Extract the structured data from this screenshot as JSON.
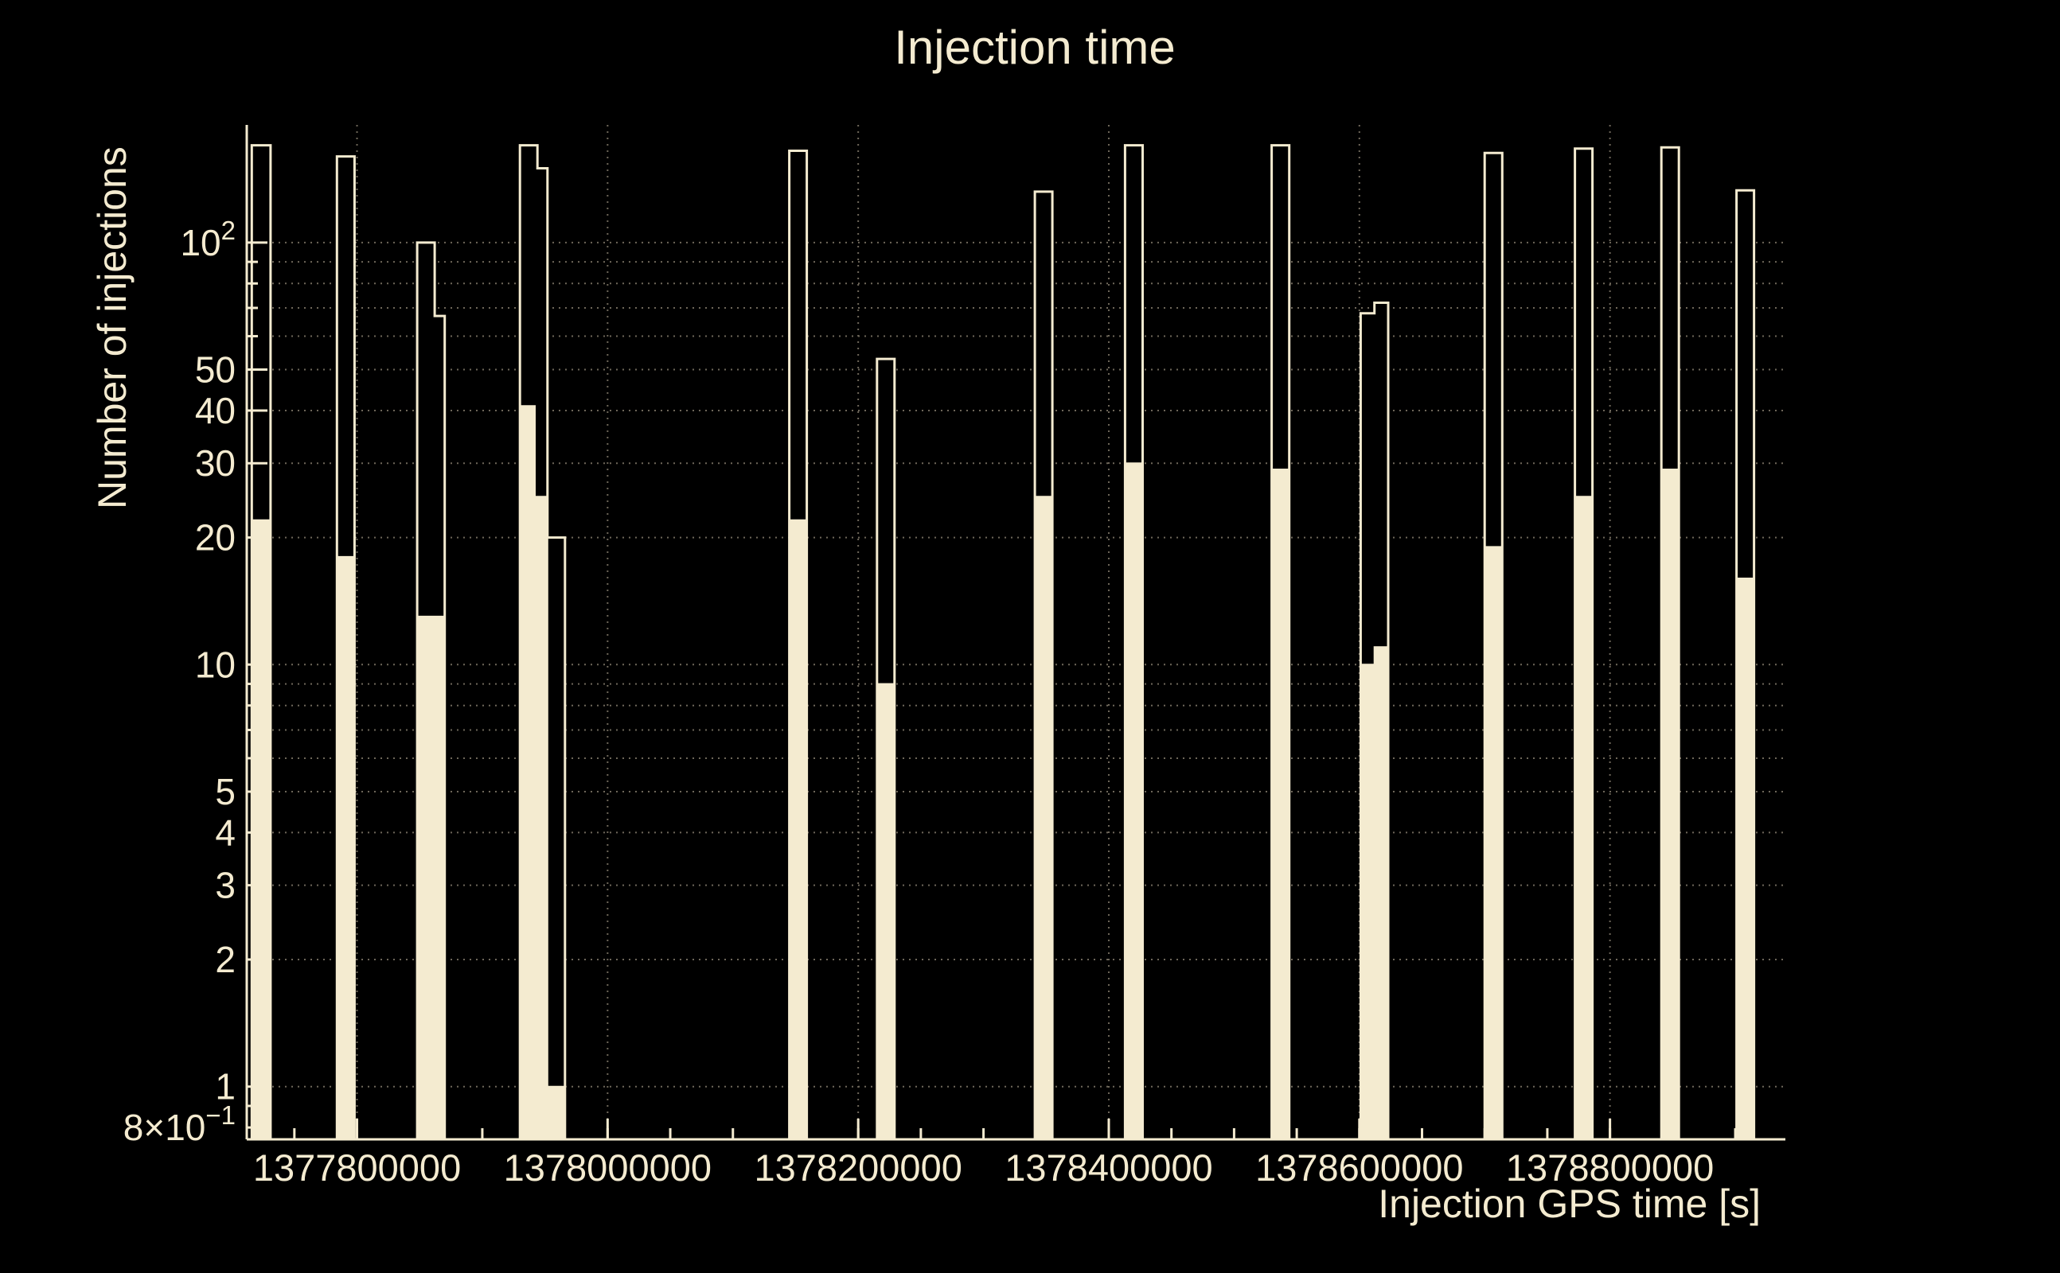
{
  "chart_data": {
    "type": "bar",
    "title": "Injection time",
    "xlabel": "Injection GPS time [s]",
    "ylabel": "Number of injections",
    "x_axis": {
      "min": 1377712000,
      "max": 1378940000,
      "major_ticks": [
        1377800000,
        1378000000,
        1378200000,
        1378400000,
        1378600000,
        1378800000
      ],
      "major_tick_labels": [
        "1377800000",
        "1378000000",
        "1378200000",
        "1378400000",
        "1378600000",
        "1378800000"
      ],
      "minor_tick_step": 50000
    },
    "y_axis": {
      "scale": "log",
      "min": 0.75,
      "max": 190,
      "labeled_ticks": [
        {
          "v": 100,
          "base": "10",
          "exp": "2"
        },
        {
          "v": 50,
          "base": "50",
          "exp": ""
        },
        {
          "v": 40,
          "base": "40",
          "exp": ""
        },
        {
          "v": 30,
          "base": "30",
          "exp": ""
        },
        {
          "v": 20,
          "base": "20",
          "exp": ""
        },
        {
          "v": 10,
          "base": "10",
          "exp": ""
        },
        {
          "v": 5,
          "base": "5",
          "exp": ""
        },
        {
          "v": 4,
          "base": "4",
          "exp": ""
        },
        {
          "v": 3,
          "base": "3",
          "exp": ""
        },
        {
          "v": 2,
          "base": "2",
          "exp": ""
        },
        {
          "v": 1,
          "base": "1",
          "exp": ""
        },
        {
          "v": 0.8,
          "base": "8×10",
          "exp": "−1"
        }
      ],
      "minor_ticks": [
        0.9,
        6,
        7,
        8,
        9,
        60,
        70,
        80,
        90
      ]
    },
    "grid": {
      "horizontal_values": [
        1,
        2,
        3,
        4,
        5,
        6,
        7,
        8,
        9,
        10,
        20,
        30,
        40,
        50,
        60,
        70,
        80,
        90,
        100
      ],
      "vertical_at_major_x": true
    },
    "series": [
      {
        "name": "outline-histogram",
        "style": "outline",
        "bins": [
          [
            1377716000,
            1377731000,
            170
          ],
          [
            1377784000,
            1377798000,
            160
          ],
          [
            1377848000,
            1377862000,
            100
          ],
          [
            1377862000,
            1377870000,
            67
          ],
          [
            1377930000,
            1377944000,
            170
          ],
          [
            1377944000,
            1377952000,
            150
          ],
          [
            1377952000,
            1377966000,
            20
          ],
          [
            1378145000,
            1378159000,
            165
          ],
          [
            1378215000,
            1378229000,
            53
          ],
          [
            1378341000,
            1378355000,
            132
          ],
          [
            1378413000,
            1378427000,
            170
          ],
          [
            1378530000,
            1378544000,
            170
          ],
          [
            1378601000,
            1378612000,
            68
          ],
          [
            1378612000,
            1378623000,
            72
          ],
          [
            1378700000,
            1378714000,
            163
          ],
          [
            1378772000,
            1378786000,
            167
          ],
          [
            1378841000,
            1378855000,
            168
          ],
          [
            1378901000,
            1378915000,
            133
          ]
        ]
      },
      {
        "name": "filled-histogram",
        "style": "filled",
        "bins": [
          [
            1377716000,
            1377731000,
            22
          ],
          [
            1377784000,
            1377798000,
            18
          ],
          [
            1377848000,
            1377862000,
            13
          ],
          [
            1377862000,
            1377870000,
            13
          ],
          [
            1377930000,
            1377942000,
            41
          ],
          [
            1377942000,
            1377952000,
            25
          ],
          [
            1377952000,
            1377966000,
            1
          ],
          [
            1378145000,
            1378159000,
            22
          ],
          [
            1378215000,
            1378229000,
            9
          ],
          [
            1378341000,
            1378355000,
            25
          ],
          [
            1378413000,
            1378427000,
            30
          ],
          [
            1378530000,
            1378544000,
            29
          ],
          [
            1378601000,
            1378612000,
            10
          ],
          [
            1378612000,
            1378623000,
            11
          ],
          [
            1378700000,
            1378714000,
            19
          ],
          [
            1378772000,
            1378786000,
            25
          ],
          [
            1378841000,
            1378855000,
            29
          ],
          [
            1378901000,
            1378915000,
            16
          ]
        ]
      }
    ]
  },
  "colors": {
    "background": "#000000",
    "foreground": "#F4EBD0",
    "grid": "#6E675A"
  }
}
